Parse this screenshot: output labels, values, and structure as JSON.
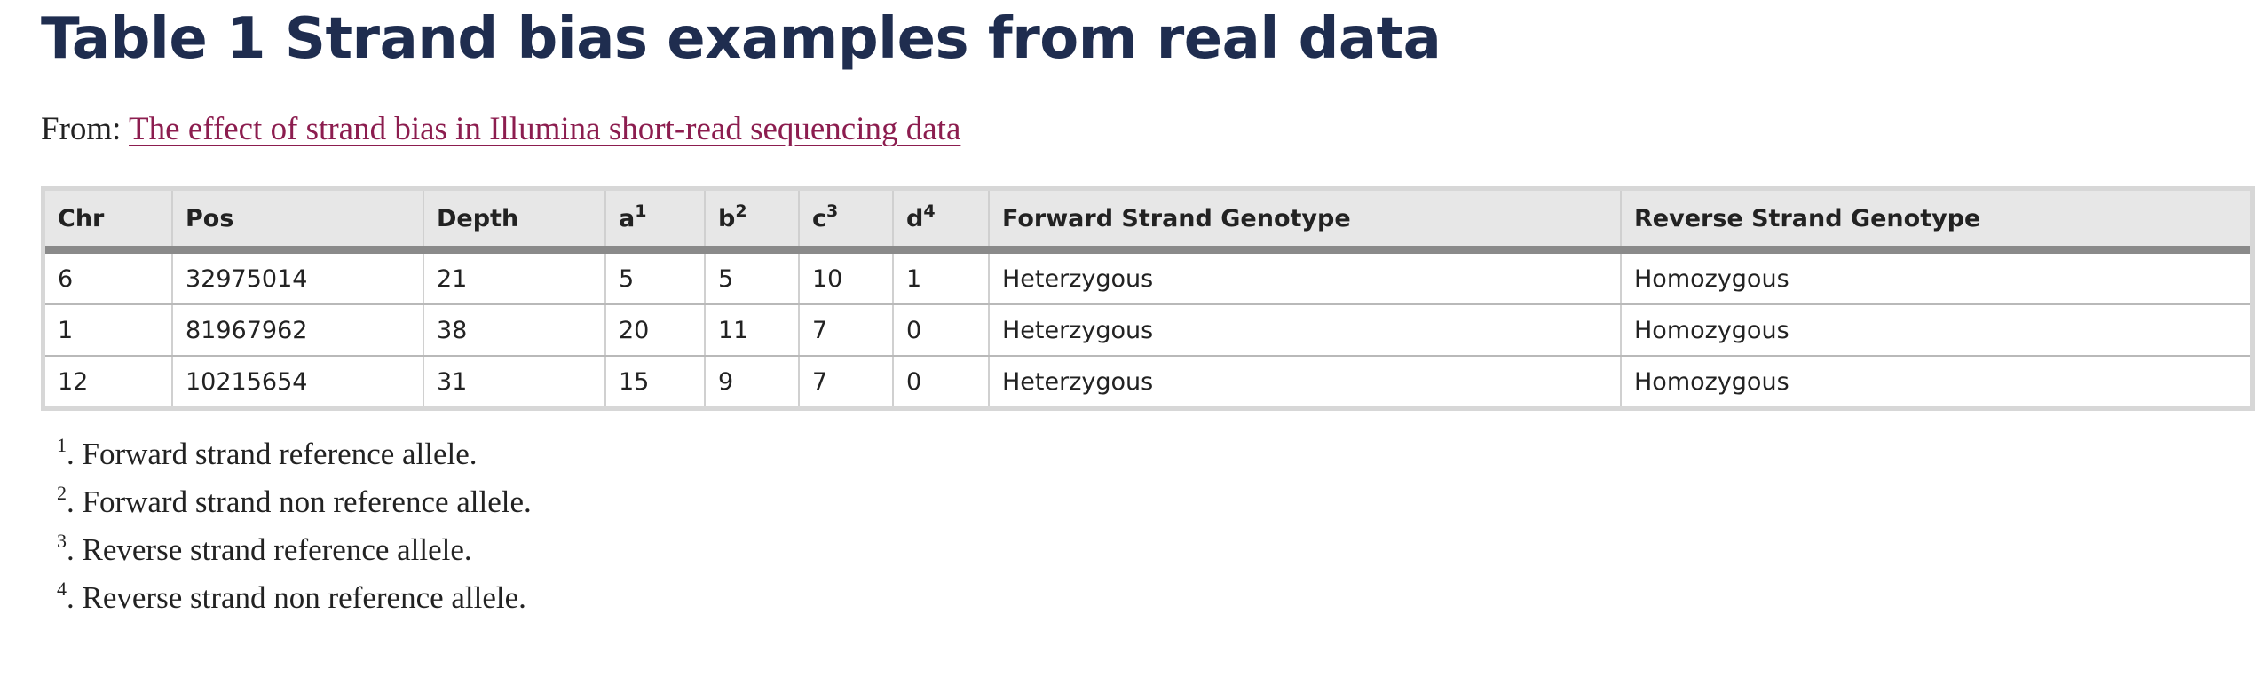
{
  "header": {
    "title": "Table 1 Strand bias examples from real data"
  },
  "source": {
    "prefix": "From: ",
    "link_text": "The effect of strand bias in Illumina short-read sequencing data"
  },
  "table": {
    "columns": [
      {
        "label": "Chr",
        "sup": ""
      },
      {
        "label": "Pos",
        "sup": ""
      },
      {
        "label": "Depth",
        "sup": ""
      },
      {
        "label": "a",
        "sup": "1"
      },
      {
        "label": "b",
        "sup": "2"
      },
      {
        "label": "c",
        "sup": "3"
      },
      {
        "label": "d",
        "sup": "4"
      },
      {
        "label": "Forward Strand Genotype",
        "sup": ""
      },
      {
        "label": "Reverse Strand Genotype",
        "sup": ""
      }
    ],
    "rows": [
      [
        "6",
        "32975014",
        "21",
        "5",
        "5",
        "10",
        "1",
        "Heterzygous",
        "Homozygous"
      ],
      [
        "1",
        "81967962",
        "38",
        "20",
        "11",
        "7",
        "0",
        "Heterzygous",
        "Homozygous"
      ],
      [
        "12",
        "10215654",
        "31",
        "15",
        "9",
        "7",
        "0",
        "Heterzygous",
        "Homozygous"
      ]
    ]
  },
  "footnotes": [
    {
      "mark": "1",
      "text": ". Forward strand reference allele."
    },
    {
      "mark": "2",
      "text": ". Forward strand non reference allele."
    },
    {
      "mark": "3",
      "text": ". Reverse strand reference allele."
    },
    {
      "mark": "4",
      "text": ". Reverse strand non reference allele."
    }
  ]
}
